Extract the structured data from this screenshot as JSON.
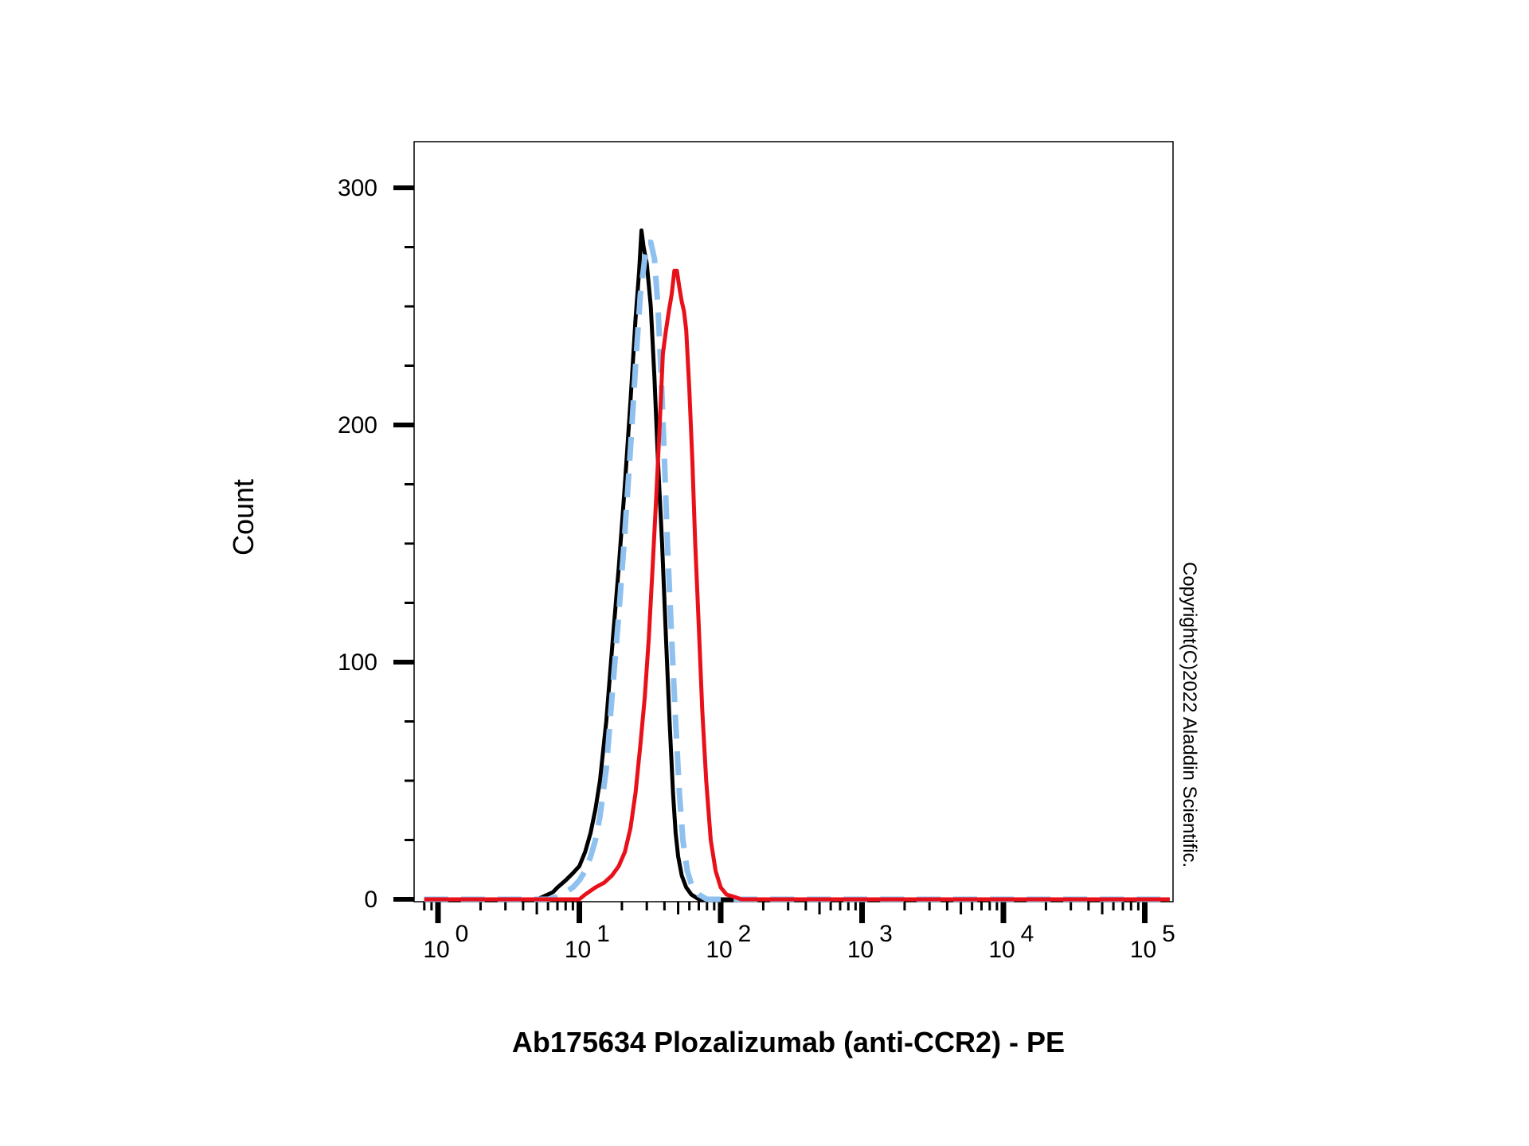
{
  "chart_data": {
    "type": "line",
    "title": "",
    "xlabel": "Ab175634 Plozalizumab (anti-CCR2) - PE",
    "ylabel": "Count",
    "x_scale": "log",
    "xlim": [
      0.8,
      150000
    ],
    "ylim": [
      -5,
      320
    ],
    "grid": false,
    "y_ticks": [
      {
        "value": 0,
        "label": "0"
      },
      {
        "value": 100,
        "label": "100"
      },
      {
        "value": 200,
        "label": "200"
      },
      {
        "value": 300,
        "label": "300"
      }
    ],
    "x_ticks": [
      {
        "value": 1,
        "base": "10",
        "exp": "0"
      },
      {
        "value": 10,
        "base": "10",
        "exp": "1"
      },
      {
        "value": 100,
        "base": "10",
        "exp": "2"
      },
      {
        "value": 1000,
        "base": "10",
        "exp": "3"
      },
      {
        "value": 10000,
        "base": "10",
        "exp": "4"
      },
      {
        "value": 100000,
        "base": "10",
        "exp": "5"
      }
    ],
    "series": [
      {
        "color": "#000000",
        "style": "solid",
        "points": [
          [
            0.8,
            0
          ],
          [
            5,
            0
          ],
          [
            5.5,
            1
          ],
          [
            6.5,
            3
          ],
          [
            7,
            5
          ],
          [
            8,
            8
          ],
          [
            9,
            11
          ],
          [
            10,
            14
          ],
          [
            11,
            20
          ],
          [
            12,
            28
          ],
          [
            13,
            38
          ],
          [
            14,
            50
          ],
          [
            15.5,
            75
          ],
          [
            17,
            105
          ],
          [
            19,
            140
          ],
          [
            21,
            175
          ],
          [
            23,
            210
          ],
          [
            25,
            245
          ],
          [
            26.5,
            265
          ],
          [
            27.5,
            282
          ],
          [
            28.5,
            275
          ],
          [
            30,
            268
          ],
          [
            32,
            250
          ],
          [
            34,
            220
          ],
          [
            36,
            185
          ],
          [
            38.5,
            150
          ],
          [
            41,
            110
          ],
          [
            43.5,
            75
          ],
          [
            46,
            45
          ],
          [
            48,
            28
          ],
          [
            50,
            18
          ],
          [
            53,
            10
          ],
          [
            57,
            5
          ],
          [
            62,
            2
          ],
          [
            70,
            0
          ],
          [
            150000,
            0
          ]
        ]
      },
      {
        "color": "#8ec1ef",
        "style": "dashed",
        "points": [
          [
            0.8,
            0
          ],
          [
            6,
            0
          ],
          [
            7,
            1
          ],
          [
            8,
            3
          ],
          [
            9,
            5
          ],
          [
            10,
            8
          ],
          [
            11,
            12
          ],
          [
            12,
            18
          ],
          [
            13,
            25
          ],
          [
            14,
            35
          ],
          [
            15.5,
            55
          ],
          [
            17,
            85
          ],
          [
            19,
            120
          ],
          [
            21,
            155
          ],
          [
            23,
            190
          ],
          [
            25,
            225
          ],
          [
            27,
            255
          ],
          [
            29,
            270
          ],
          [
            30.5,
            277
          ],
          [
            32,
            277
          ],
          [
            34,
            270
          ],
          [
            36,
            250
          ],
          [
            38,
            220
          ],
          [
            40,
            185
          ],
          [
            42,
            150
          ],
          [
            45,
            110
          ],
          [
            48,
            75
          ],
          [
            51,
            45
          ],
          [
            54,
            25
          ],
          [
            58,
            12
          ],
          [
            63,
            5
          ],
          [
            70,
            2
          ],
          [
            80,
            0
          ],
          [
            150000,
            0
          ]
        ]
      },
      {
        "color": "#e8111a",
        "style": "solid",
        "points": [
          [
            0.8,
            0
          ],
          [
            10,
            0
          ],
          [
            11,
            2
          ],
          [
            13,
            5
          ],
          [
            15,
            7
          ],
          [
            17,
            10
          ],
          [
            19,
            14
          ],
          [
            21,
            20
          ],
          [
            23,
            30
          ],
          [
            25,
            45
          ],
          [
            27,
            65
          ],
          [
            29,
            85
          ],
          [
            31,
            110
          ],
          [
            33,
            140
          ],
          [
            35,
            170
          ],
          [
            37,
            200
          ],
          [
            39,
            230
          ],
          [
            41,
            240
          ],
          [
            43,
            248
          ],
          [
            45,
            255
          ],
          [
            47,
            265
          ],
          [
            49,
            265
          ],
          [
            51,
            258
          ],
          [
            53,
            252
          ],
          [
            55,
            248
          ],
          [
            57,
            240
          ],
          [
            60,
            215
          ],
          [
            63,
            185
          ],
          [
            66,
            150
          ],
          [
            70,
            115
          ],
          [
            74,
            80
          ],
          [
            79,
            50
          ],
          [
            85,
            25
          ],
          [
            92,
            12
          ],
          [
            100,
            5
          ],
          [
            110,
            2
          ],
          [
            125,
            1
          ],
          [
            140,
            0
          ],
          [
            150000,
            0
          ]
        ]
      }
    ]
  },
  "copyright": "Copyright(C)2022 Aladdin Scientific."
}
